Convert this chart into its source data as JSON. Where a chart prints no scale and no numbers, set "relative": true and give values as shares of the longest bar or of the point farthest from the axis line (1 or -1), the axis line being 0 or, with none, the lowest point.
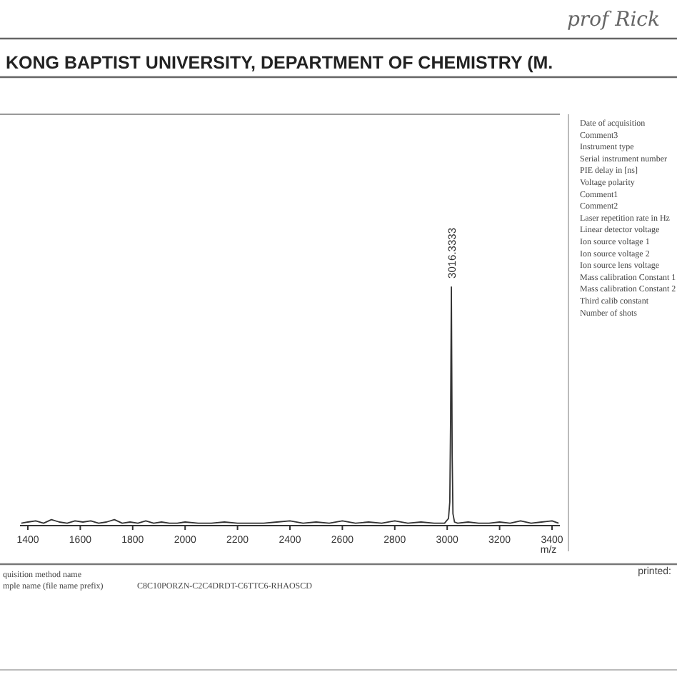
{
  "chart_data": {
    "type": "line",
    "title": "KONG BAPTIST UNIVERSITY, DEPARTMENT OF CHEMISTRY (M.",
    "xlabel": "m/z",
    "relative": true,
    "xlim": [
      1370,
      3430
    ],
    "xticks": [
      1400,
      1600,
      1800,
      2000,
      2200,
      2400,
      2600,
      2800,
      3000,
      3200,
      3400
    ],
    "series": [
      {
        "color": "#333333",
        "x": [
          1375,
          1400,
          1430,
          1460,
          1490,
          1520,
          1550,
          1580,
          1610,
          1640,
          1670,
          1700,
          1730,
          1760,
          1790,
          1820,
          1850,
          1880,
          1910,
          1940,
          1970,
          2000,
          2050,
          2100,
          2150,
          2200,
          2250,
          2300,
          2350,
          2400,
          2450,
          2500,
          2550,
          2600,
          2650,
          2700,
          2750,
          2800,
          2850,
          2900,
          2950,
          2990,
          3005,
          3010,
          3013,
          3016,
          3019,
          3022,
          3028,
          3040,
          3080,
          3120,
          3160,
          3200,
          3240,
          3280,
          3320,
          3360,
          3400,
          3425
        ],
        "values": [
          0.01,
          0.015,
          0.02,
          0.01,
          0.025,
          0.015,
          0.01,
          0.02,
          0.015,
          0.02,
          0.01,
          0.015,
          0.025,
          0.01,
          0.015,
          0.01,
          0.02,
          0.01,
          0.015,
          0.01,
          0.01,
          0.015,
          0.01,
          0.01,
          0.015,
          0.01,
          0.01,
          0.01,
          0.015,
          0.02,
          0.01,
          0.015,
          0.01,
          0.02,
          0.01,
          0.015,
          0.01,
          0.02,
          0.01,
          0.015,
          0.01,
          0.01,
          0.03,
          0.1,
          0.45,
          1,
          0.3,
          0.05,
          0.015,
          0.01,
          0.015,
          0.01,
          0.01,
          0.015,
          0.01,
          0.02,
          0.01,
          0.015,
          0.02,
          0.01
        ]
      }
    ],
    "annotations": [
      "prof Rick",
      "Date of acquisition",
      "Comment3",
      "Instrument type",
      "Serial instrument number",
      "PIE delay in [ns]",
      "Voltage polarity",
      "Comment1",
      "Comment2",
      "Laser repetition rate in Hz",
      "Linear detector voltage",
      "Ion source voltage 1",
      "Ion source voltage 2",
      "Ion source lens voltage",
      "Mass calibration Constant 1",
      "Mass calibration Constant 2",
      "Third calib constant",
      "Number of shots",
      "quisition method name",
      "mple name (file name prefix)",
      "C8C10PORZN-C2C4DRDT-C6TTC6-RHAOSCD",
      "printed:",
      "3016.3333"
    ]
  }
}
